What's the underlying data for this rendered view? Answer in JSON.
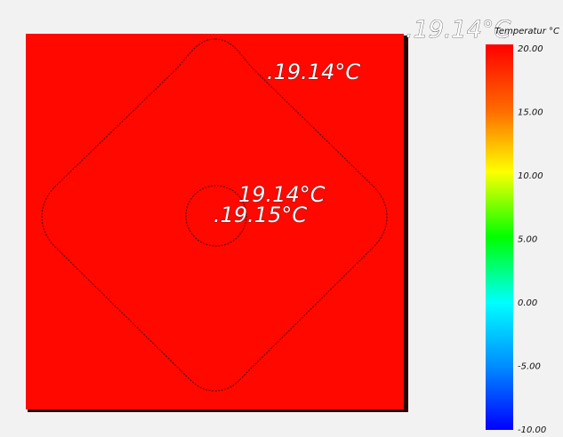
{
  "viewer": {
    "top_probe_label": ".19.14°C",
    "colorbar_title": "Temperatur °C"
  },
  "probes": [
    {
      "label": ".19.14°C"
    },
    {
      "label": "19.14°C"
    },
    {
      "label": ".19.15°C"
    }
  ],
  "colorbar": {
    "ticks": [
      "20.00",
      "15.00",
      "10.00",
      "5.00",
      "0.00",
      "-5.00",
      "-10.00"
    ],
    "range": [
      -10,
      20
    ],
    "colors": [
      "#ff0000",
      "#ff8000",
      "#ffff00",
      "#00ff00",
      "#00ffff",
      "#0000ff"
    ]
  },
  "colors": {
    "field": "#ff0800",
    "background": "#f2f2f2",
    "contour": "#4a0000"
  }
}
